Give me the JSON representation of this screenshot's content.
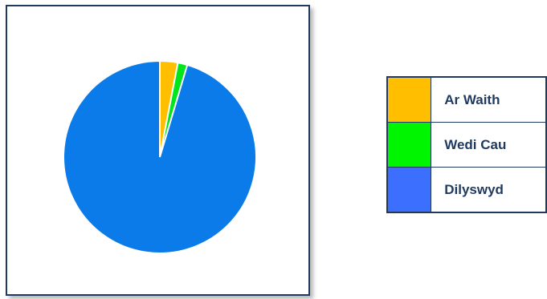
{
  "chart_data": {
    "type": "pie",
    "title": "",
    "slices": [
      {
        "label": "Ar Waith",
        "value": 3.0,
        "color": "#FFBF00"
      },
      {
        "label": "Wedi Cau",
        "value": 1.6,
        "color": "#00E61A"
      },
      {
        "label": "Dilyswyd",
        "value": 95.4,
        "color": "#0A7BE8"
      }
    ],
    "legend": {
      "placement": "right",
      "entries": [
        {
          "label": "Ar Waith",
          "color": "#FFBF00"
        },
        {
          "label": "Wedi Cau",
          "color": "#00F500"
        },
        {
          "label": "Dilyswyd",
          "color": "#3D6FFF"
        }
      ]
    }
  }
}
